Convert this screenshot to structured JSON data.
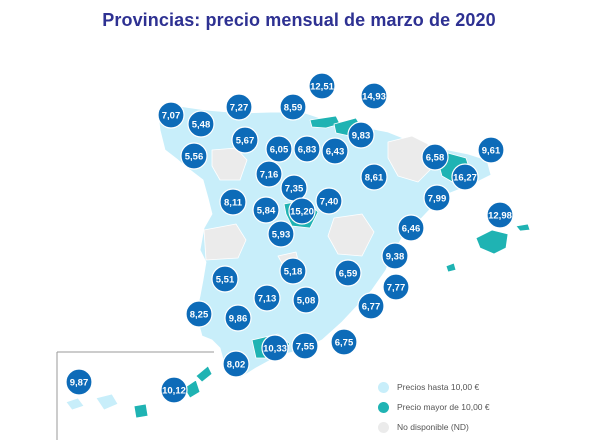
{
  "title": "Provincias: precio mensual de marzo de 2020",
  "colors": {
    "title": "#2e3192",
    "low": "#c8eefa",
    "high": "#1fb3b3",
    "nd": "#ebebeb",
    "bubble": "#0d6bb8",
    "border": "#ffffff"
  },
  "legend": [
    {
      "label": "Precios hasta 10,00 €",
      "color": "#c8eefa"
    },
    {
      "label": "Precio mayor de 10,00 €",
      "color": "#1fb3b3"
    },
    {
      "label": "No disponible (ND)",
      "color": "#ebebeb"
    }
  ],
  "price_labels": [
    "12,51",
    "14,93",
    "7,07",
    "7,27",
    "8,59",
    "5,48",
    "9,83",
    "5,67",
    "6,05",
    "6,83",
    "6,43",
    "6,58",
    "9,61",
    "5,56",
    "16,27",
    "7,16",
    "8,61",
    "7,35",
    "7,99",
    "8,11",
    "5,84",
    "15,20",
    "7,40",
    "12,98",
    "6,46",
    "5,93",
    "9,38",
    "5,51",
    "5,18",
    "6,59",
    "7,77",
    "7,13",
    "5,08",
    "8,25",
    "9,86",
    "6,77",
    "10,33",
    "7,55",
    "6,75",
    "8,02",
    "9,87",
    "10,12"
  ]
}
